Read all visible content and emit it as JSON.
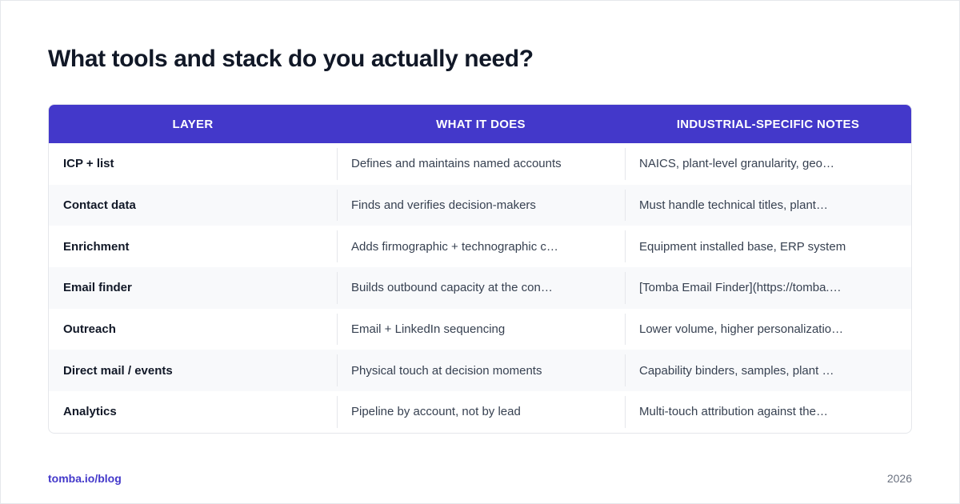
{
  "title": "What tools and stack do you actually need?",
  "table": {
    "headers": [
      "LAYER",
      "WHAT IT DOES",
      "INDUSTRIAL-SPECIFIC NOTES"
    ],
    "rows": [
      {
        "layer": "ICP + list",
        "does": "Defines and maintains named accounts",
        "notes": "NAICS, plant-level granularity, geo…"
      },
      {
        "layer": "Contact data",
        "does": "Finds and verifies decision-makers",
        "notes": "Must handle technical titles, plant…"
      },
      {
        "layer": "Enrichment",
        "does": "Adds firmographic + technographic c…",
        "notes": "Equipment installed base, ERP system"
      },
      {
        "layer": "Email finder",
        "does": "Builds outbound capacity at the con…",
        "notes": "[Tomba Email Finder](https://tomba.…"
      },
      {
        "layer": "Outreach",
        "does": "Email + LinkedIn sequencing",
        "notes": "Lower volume, higher personalizatio…"
      },
      {
        "layer": "Direct mail / events",
        "does": "Physical touch at decision moments",
        "notes": "Capability binders, samples, plant …"
      },
      {
        "layer": "Analytics",
        "does": "Pipeline by account, not by lead",
        "notes": "Multi-touch attribution against the…"
      }
    ]
  },
  "footer": {
    "link": "tomba.io/blog",
    "year": "2026"
  },
  "colors": {
    "accent": "#4338ca",
    "title": "#111827",
    "row_alt": "#f8f9fb"
  }
}
